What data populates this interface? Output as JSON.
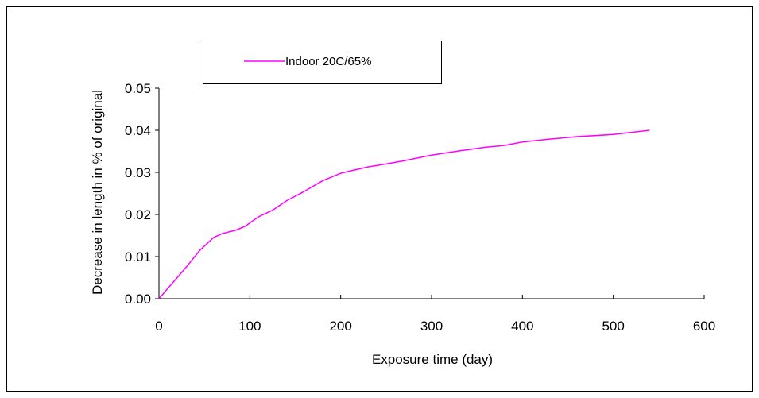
{
  "chart_data": {
    "type": "line",
    "title": "",
    "xlabel": "Exposure time (day)",
    "ylabel": "Decrease in length in % of original",
    "xlim": [
      0,
      600
    ],
    "ylim": [
      0,
      0.05
    ],
    "xticks": [
      0,
      100,
      200,
      300,
      400,
      500,
      600
    ],
    "yticks": [
      "0.00",
      "0.01",
      "0.02",
      "0.03",
      "0.04",
      "0.05"
    ],
    "grid": false,
    "legend_position": "top-left",
    "series": [
      {
        "name": "Indoor 20C/65%",
        "color": "#ff00ff",
        "x": [
          0,
          10,
          20,
          30,
          45,
          60,
          70,
          85,
          95,
          100,
          110,
          125,
          140,
          160,
          180,
          200,
          210,
          230,
          250,
          270,
          300,
          330,
          360,
          380,
          400,
          430,
          460,
          500,
          540
        ],
        "y": [
          0,
          0.0025,
          0.005,
          0.0075,
          0.0115,
          0.0145,
          0.0155,
          0.0163,
          0.0172,
          0.018,
          0.0195,
          0.021,
          0.0232,
          0.0255,
          0.028,
          0.0298,
          0.0303,
          0.0313,
          0.032,
          0.0328,
          0.0341,
          0.0351,
          0.036,
          0.0364,
          0.0372,
          0.0379,
          0.0385,
          0.039,
          0.04
        ]
      }
    ]
  }
}
